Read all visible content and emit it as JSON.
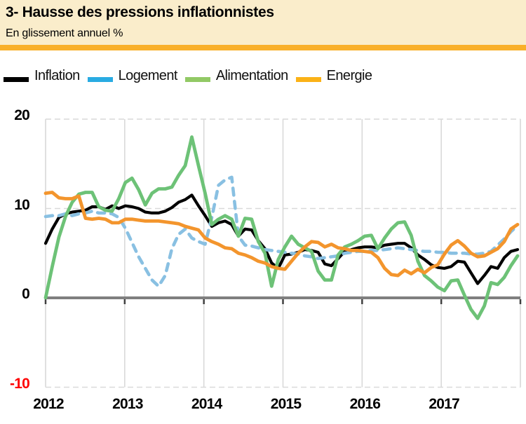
{
  "header": {
    "title": "3- Hausse des pressions inflationnistes",
    "subtitle": "En glissement annuel %",
    "background_color": "#FAEDCB",
    "accent_bar_color": "#F9B02A"
  },
  "legend": [
    {
      "label": "Inflation",
      "swatch_color": "#000000"
    },
    {
      "label": "Logement",
      "swatch_color": "#29ABE2"
    },
    {
      "label": "Alimentation",
      "swatch_color": "#92C965"
    },
    {
      "label": "Energie",
      "swatch_color": "#FBB217"
    }
  ],
  "colors": {
    "gridline": "#D9D9D9",
    "zero_axis": "#7F7F7F",
    "axis_tick": "#404040",
    "negative_tick_label": "#FE0000"
  },
  "chart_data": {
    "type": "line",
    "title": "Hausse des pressions inflationnistes",
    "subtitle": "En glissement annuel %",
    "x_unit": "month",
    "x_start": "2012-01",
    "x_end": "2017-12",
    "x_tick_labels": [
      "2012",
      "2013",
      "2014",
      "2015",
      "2016",
      "2017"
    ],
    "y_ticks": [
      20,
      10,
      0,
      -10
    ],
    "ylim": [
      -10,
      20
    ],
    "grid": "horizontal dashed at 20/10/-10, solid zero axis, vertical solid per year",
    "legend_position": "top",
    "series": [
      {
        "name": "Inflation",
        "color": "#000000",
        "style": "solid",
        "values": [
          6.1,
          7.7,
          9.0,
          9.4,
          9.6,
          9.7,
          9.8,
          10.2,
          10.2,
          9.9,
          10.3,
          10.0,
          10.3,
          10.2,
          10.0,
          9.6,
          9.5,
          9.5,
          9.7,
          10.1,
          10.7,
          11.0,
          11.5,
          10.3,
          9.2,
          8.0,
          8.4,
          8.6,
          8.2,
          6.9,
          7.7,
          7.6,
          6.4,
          5.5,
          3.9,
          3.3,
          4.8,
          4.9,
          5.1,
          5.4,
          5.3,
          5.1,
          3.8,
          3.6,
          4.4,
          5.2,
          5.4,
          5.6,
          5.7,
          5.7,
          5.6,
          5.9,
          6.0,
          6.1,
          6.1,
          5.6,
          4.8,
          4.3,
          3.7,
          3.4,
          3.3,
          3.5,
          4.1,
          4.0,
          2.8,
          1.6,
          2.5,
          3.5,
          3.3,
          4.5,
          5.2,
          5.4
        ]
      },
      {
        "name": "Logement",
        "color": "#89C0E2",
        "style": "dashed",
        "values": [
          9.1,
          9.2,
          9.2,
          9.4,
          9.2,
          9.4,
          9.5,
          9.7,
          9.5,
          9.5,
          9.4,
          9.0,
          7.8,
          6.2,
          4.6,
          3.3,
          2.0,
          1.3,
          2.5,
          5.5,
          7.1,
          7.7,
          6.7,
          6.3,
          6.0,
          9.0,
          12.6,
          13.2,
          13.5,
          6.9,
          5.9,
          5.8,
          5.6,
          5.4,
          5.3,
          5.2,
          5.1,
          5.0,
          4.9,
          4.7,
          4.6,
          4.4,
          4.5,
          4.6,
          4.7,
          5.0,
          5.1,
          5.2,
          5.2,
          5.3,
          5.3,
          5.4,
          5.5,
          5.6,
          5.5,
          5.4,
          5.3,
          5.2,
          5.2,
          5.1,
          5.1,
          5.0,
          5.0,
          5.0,
          4.9,
          4.9,
          5.0,
          5.2,
          5.9,
          6.6,
          7.4,
          8.1
        ]
      },
      {
        "name": "Alimentation",
        "color": "#6DC277",
        "style": "solid",
        "values": [
          0.0,
          3.5,
          6.8,
          9.1,
          10.7,
          11.6,
          11.8,
          11.8,
          10.2,
          9.8,
          9.7,
          11.1,
          12.9,
          13.4,
          12.1,
          10.4,
          11.7,
          12.2,
          12.2,
          12.4,
          13.7,
          14.8,
          18.0,
          14.8,
          11.7,
          8.2,
          8.8,
          9.2,
          8.8,
          6.9,
          8.9,
          8.8,
          6.3,
          5.0,
          1.3,
          4.3,
          5.7,
          6.9,
          6.0,
          5.6,
          5.2,
          3.0,
          2.0,
          2.0,
          4.8,
          5.7,
          6.0,
          6.4,
          6.9,
          7.0,
          5.5,
          6.7,
          7.7,
          8.4,
          8.5,
          7.0,
          4.1,
          2.5,
          1.9,
          1.2,
          0.8,
          1.9,
          2.0,
          0.3,
          -1.3,
          -2.3,
          -0.9,
          1.7,
          1.5,
          2.3,
          3.6,
          4.7
        ]
      },
      {
        "name": "Energie",
        "color": "#F3952D",
        "style": "solid",
        "values": [
          11.7,
          11.8,
          11.2,
          11.1,
          11.1,
          11.4,
          8.9,
          8.8,
          8.9,
          8.8,
          8.4,
          8.4,
          8.8,
          8.8,
          8.7,
          8.6,
          8.6,
          8.6,
          8.5,
          8.4,
          8.3,
          8.0,
          7.8,
          7.6,
          6.7,
          6.3,
          6.0,
          5.6,
          5.5,
          5.0,
          4.8,
          4.5,
          4.1,
          3.9,
          3.5,
          3.3,
          3.2,
          4.1,
          5.0,
          5.7,
          6.3,
          6.2,
          5.7,
          6.0,
          5.6,
          5.5,
          5.3,
          5.3,
          5.2,
          5.1,
          4.5,
          3.3,
          2.6,
          2.5,
          3.1,
          2.7,
          3.2,
          2.8,
          3.4,
          3.7,
          4.9,
          5.9,
          6.4,
          5.8,
          5.0,
          4.6,
          4.7,
          5.1,
          5.5,
          6.3,
          7.7,
          8.2
        ]
      }
    ]
  }
}
